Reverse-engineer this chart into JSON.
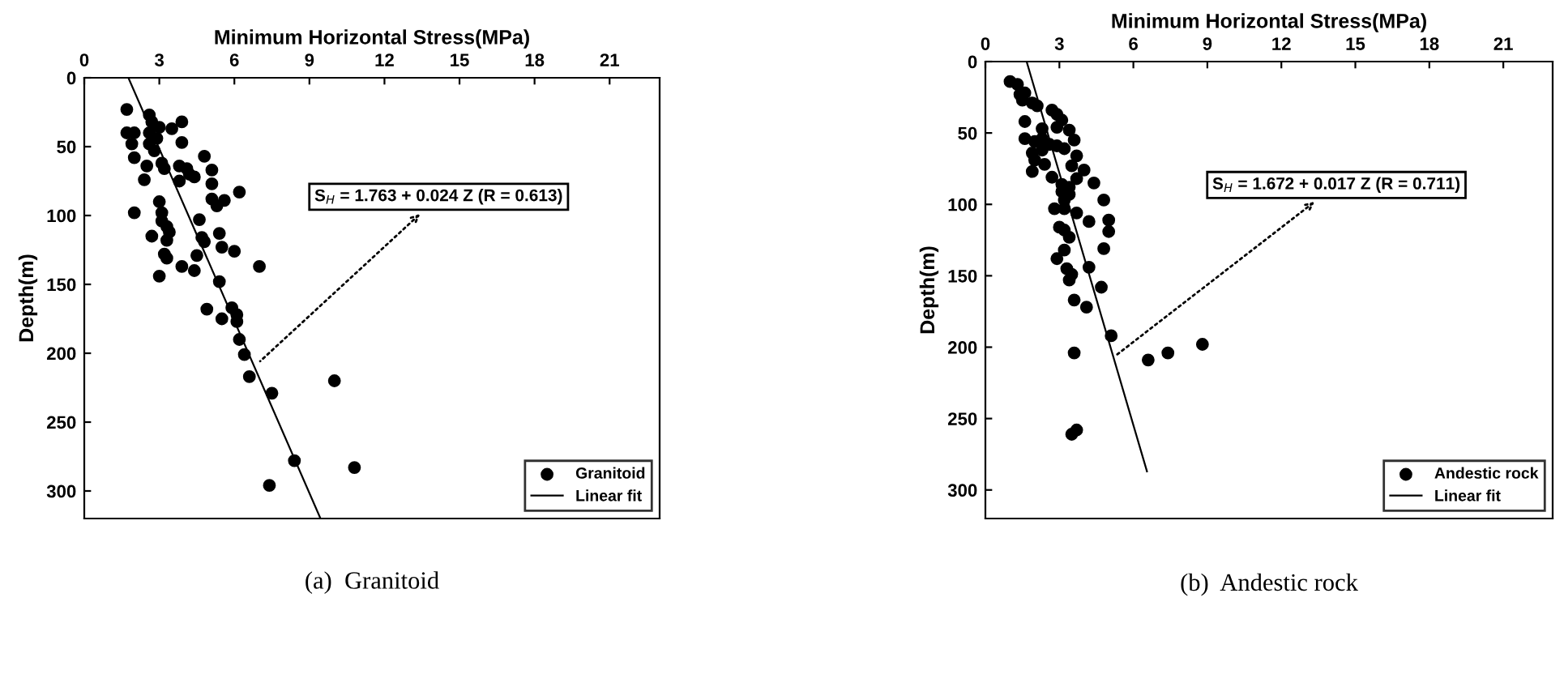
{
  "chart_data": [
    {
      "type": "scatter",
      "xlabel": "Minimum Horizontal Stress(MPa)",
      "ylabel": "Depth(m)",
      "xlim": [
        0,
        23
      ],
      "xticks": [
        0,
        3,
        6,
        9,
        12,
        15,
        18,
        21
      ],
      "ylim": [
        320,
        0
      ],
      "yticks": [
        0,
        50,
        100,
        150,
        200,
        250,
        300
      ],
      "grid": false,
      "legend": "bottom right",
      "marker": "circle",
      "annotations": [
        {
          "text": "S$_{H}$ = 1.763 + 0.024 Z (R = 0.613)",
          "x": 6.9,
          "y": 208
        },
        "(a)  Granitoid"
      ],
      "series": [
        {
          "name": "Granitoid",
          "color": "#000000",
          "x": [
            1.7,
            1.7,
            2.0,
            1.9,
            2.0,
            2.6,
            2.7,
            2.6,
            2.6,
            3.0,
            2.9,
            2.8,
            2.5,
            2.4,
            3.1,
            3.2,
            3.5,
            3.9,
            3.9,
            3.8,
            3.8,
            4.1,
            4.2,
            4.4,
            4.8,
            5.1,
            5.1,
            5.1,
            5.3,
            5.6,
            6.2,
            2.0,
            3.0,
            3.1,
            3.1,
            3.3,
            3.4,
            2.7,
            3.3,
            3.2,
            3.3,
            3.9,
            3.0,
            4.5,
            4.4,
            4.6,
            4.7,
            4.8,
            5.4,
            5.5,
            6.0,
            7.0,
            5.4,
            4.9,
            5.5,
            5.9,
            6.1,
            6.1,
            6.2,
            6.4,
            6.6,
            7.5,
            10.0,
            8.4,
            10.8,
            7.4
          ],
          "values": [
            23,
            40,
            40,
            48,
            58,
            27,
            32,
            40,
            48,
            36,
            44,
            53,
            64,
            74,
            62,
            66,
            37,
            32,
            47,
            64,
            75,
            66,
            70,
            72,
            57,
            67,
            77,
            88,
            93,
            89,
            83,
            98,
            90,
            98,
            104,
            108,
            112,
            115,
            118,
            128,
            131,
            137,
            144,
            129,
            140,
            103,
            116,
            119,
            113,
            123,
            126,
            137,
            148,
            168,
            175,
            167,
            172,
            177,
            190,
            201,
            217,
            229,
            220,
            278,
            283,
            296
          ]
        },
        {
          "name": "Linear fit",
          "type": "line",
          "color": "#000000",
          "marker": "none",
          "line_style": "solid",
          "x": [
            1.763,
            9.443
          ],
          "values": [
            0,
            320
          ]
        }
      ]
    },
    {
      "type": "scatter",
      "xlabel": "Minimum Horizontal Stress(MPa)",
      "ylabel": "Depth(m)",
      "xlim": [
        0,
        23
      ],
      "xticks": [
        0,
        3,
        6,
        9,
        12,
        15,
        18,
        21
      ],
      "ylim": [
        320,
        0
      ],
      "yticks": [
        0,
        50,
        100,
        150,
        200,
        250,
        300
      ],
      "grid": false,
      "legend": "bottom right",
      "marker": "circle",
      "annotations": [
        {
          "text": "S$_{H}$ = 1.672 + 0.017 Z (R = 0.711)",
          "x": 5.2,
          "y": 207
        },
        "(b)  Andestic rock"
      ],
      "series": [
        {
          "name": "Andestic rock",
          "color": "#000000",
          "x": [
            1.0,
            1.3,
            1.4,
            1.6,
            1.5,
            1.9,
            2.1,
            1.6,
            2.3,
            2.7,
            2.9,
            3.1,
            2.9,
            3.4,
            3.6,
            1.6,
            2.0,
            2.3,
            2.6,
            2.9,
            3.2,
            1.9,
            2.3,
            2.0,
            2.4,
            1.9,
            3.7,
            3.5,
            4.0,
            3.7,
            2.7,
            3.1,
            3.4,
            4.4,
            3.1,
            3.4,
            3.2,
            4.8,
            2.8,
            3.2,
            3.7,
            5.0,
            4.2,
            5.0,
            3.0,
            3.2,
            3.4,
            4.8,
            3.2,
            2.9,
            3.3,
            4.2,
            3.5,
            3.4,
            4.7,
            3.6,
            4.1,
            5.1,
            3.6,
            6.6,
            7.4,
            8.8,
            3.7,
            3.5
          ],
          "values": [
            14,
            16,
            23,
            22,
            27,
            29,
            31,
            42,
            47,
            34,
            37,
            41,
            46,
            48,
            55,
            54,
            56,
            54,
            58,
            59,
            61,
            64,
            62,
            69,
            72,
            77,
            66,
            73,
            76,
            82,
            81,
            86,
            88,
            85,
            91,
            93,
            97,
            97,
            103,
            103,
            106,
            111,
            112,
            119,
            116,
            118,
            123,
            131,
            132,
            138,
            145,
            144,
            149,
            153,
            158,
            167,
            172,
            192,
            204,
            209,
            204,
            198,
            258,
            261
          ]
        },
        {
          "name": "Linear fit",
          "type": "line",
          "color": "#000000",
          "marker": "none",
          "line_style": "solid",
          "x": [
            1.672,
            6.551
          ],
          "values": [
            0,
            287
          ]
        }
      ]
    }
  ]
}
